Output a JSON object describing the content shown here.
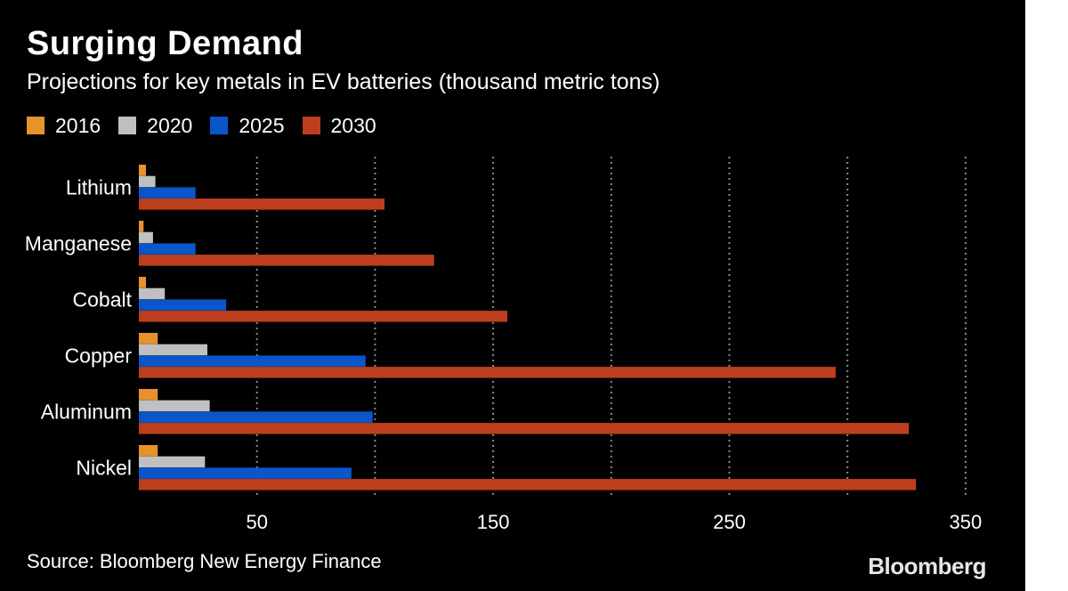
{
  "title": "Surging Demand",
  "subtitle": "Projections for key metals in EV batteries (thousand metric tons)",
  "source": "Source: Bloomberg New Energy Finance",
  "logo": "Bloomberg",
  "chart_data": {
    "type": "bar",
    "orientation": "horizontal",
    "categories": [
      "Lithium",
      "Manganese",
      "Cobalt",
      "Copper",
      "Aluminum",
      "Nickel"
    ],
    "series": [
      {
        "name": "2016",
        "color": "#e8922c",
        "values": [
          3,
          2,
          3,
          8,
          8,
          8
        ]
      },
      {
        "name": "2020",
        "color": "#c0c0c0",
        "values": [
          7,
          6,
          11,
          29,
          30,
          28
        ]
      },
      {
        "name": "2025",
        "color": "#0a55c8",
        "values": [
          24,
          24,
          37,
          96,
          99,
          90
        ]
      },
      {
        "name": "2030",
        "color": "#bd3f1e",
        "values": [
          104,
          125,
          156,
          295,
          326,
          329
        ]
      }
    ],
    "xlim": [
      0,
      350
    ],
    "xticks": [
      50,
      150,
      250,
      350
    ],
    "gridlines": [
      50,
      100,
      150,
      200,
      250,
      300,
      350
    ],
    "grid": "vertical-dotted",
    "legend": "top-left"
  }
}
